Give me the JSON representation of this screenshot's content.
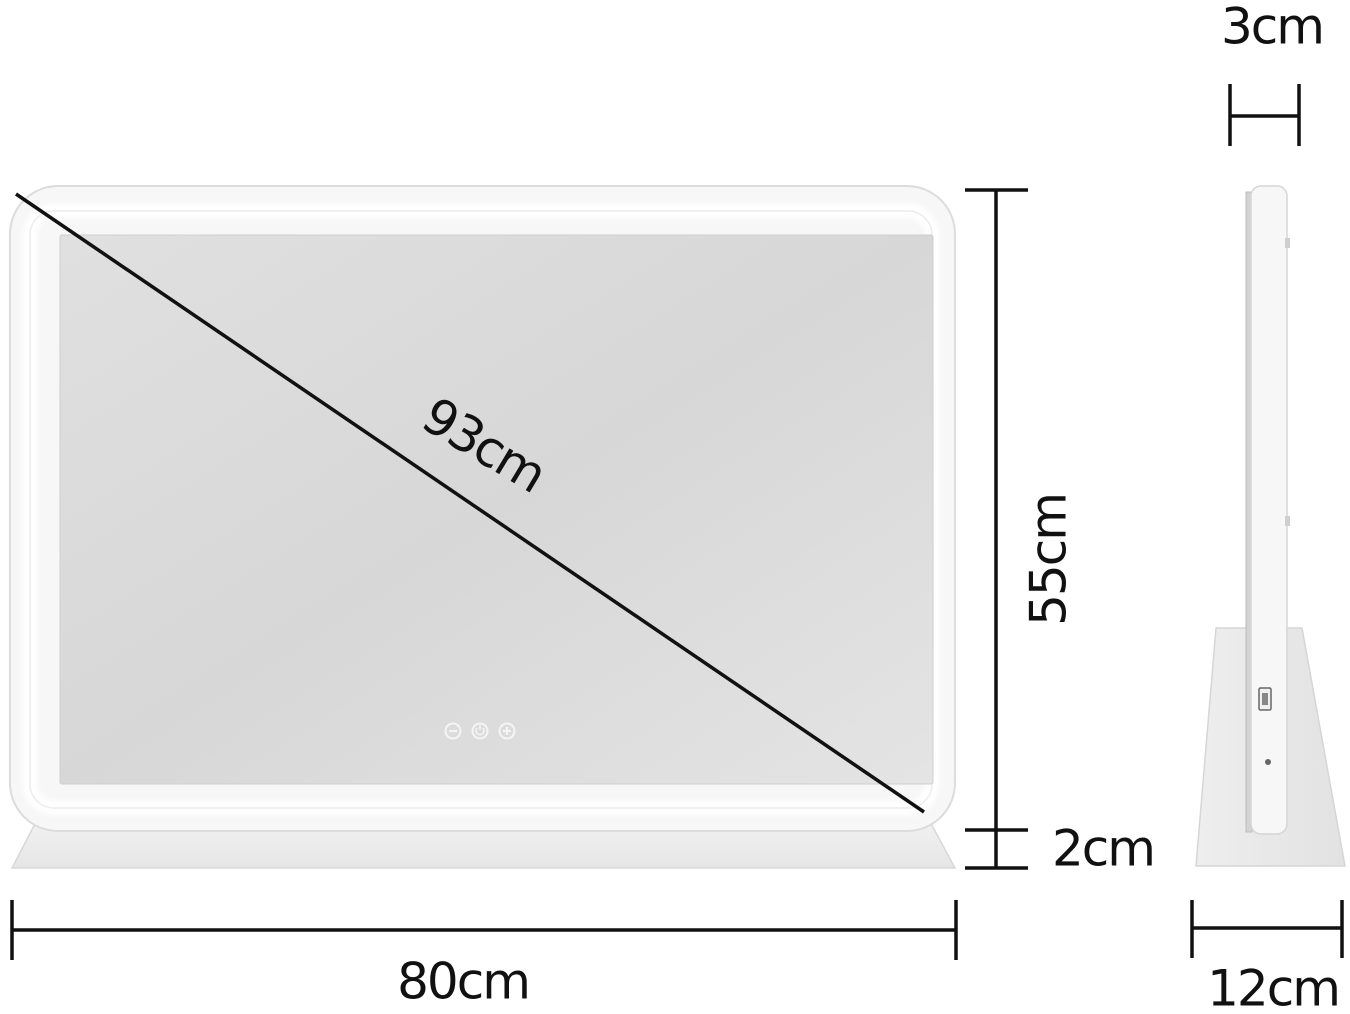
{
  "product": {
    "front_view": {
      "touch_buttons": [
        {
          "icon": "minus-icon"
        },
        {
          "icon": "power-icon"
        },
        {
          "icon": "plus-icon"
        }
      ]
    },
    "side_view": {
      "port_icon": "usb-port-icon"
    }
  },
  "dimensions": {
    "diagonal": "93cm",
    "width": "80cm",
    "height": "55cm",
    "base_height": "2cm",
    "thickness": "3cm",
    "base_depth": "12cm"
  },
  "colors": {
    "frame": "#f7f7f7",
    "frame_outline": "#dcdcdc",
    "glass": "#dadada",
    "led_strip": "#ffffff",
    "line": "#111111"
  }
}
